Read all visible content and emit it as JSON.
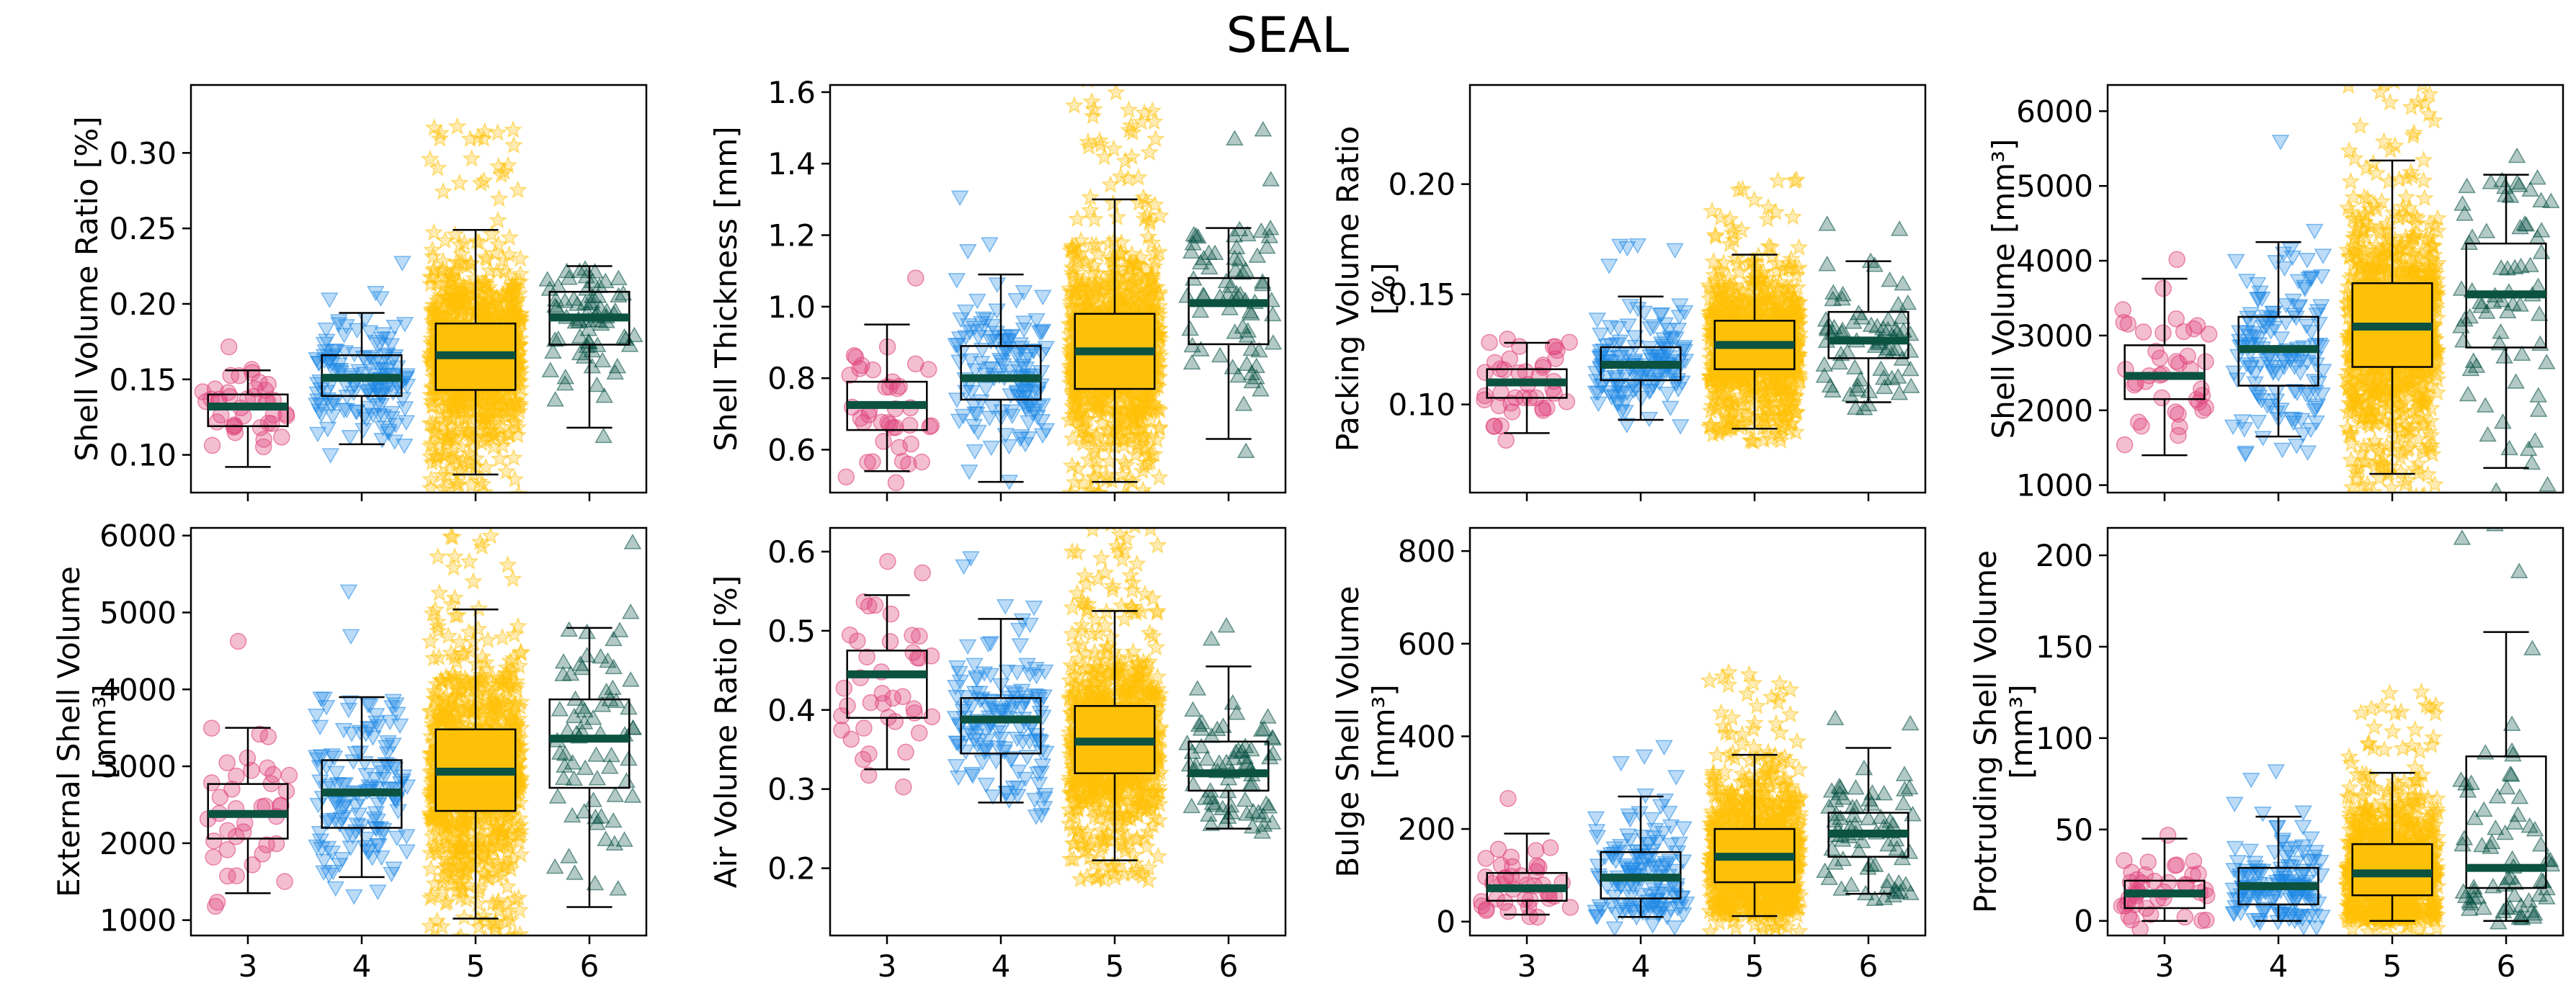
{
  "figure": {
    "title": "SEAL"
  },
  "categories": [
    "3",
    "4",
    "5",
    "6"
  ],
  "group_style": {
    "3": {
      "marker": "circle",
      "color": "#e0457b"
    },
    "4": {
      "marker": "triangle-down",
      "color": "#1e88e5"
    },
    "5": {
      "marker": "star",
      "color": "#ffc107"
    },
    "6": {
      "marker": "triangle-up",
      "color": "#004d40"
    }
  },
  "median_color": "#0b5240",
  "box_fill": {
    "3": "#ffffff",
    "4": "#ffffff",
    "5": "#ffc107",
    "6": "#ffffff"
  },
  "chart_data": [
    {
      "type": "box",
      "ylabel": "Shell Volume Ratio [%]",
      "ylim": [
        0.075,
        0.345
      ],
      "yticks": [
        "0.10",
        "0.15",
        "0.20",
        "0.25",
        "0.30"
      ],
      "categories": [
        "3",
        "4",
        "5",
        "6"
      ],
      "xtick_labels": false,
      "boxes": [
        {
          "category": "3",
          "whislo": 0.092,
          "q1": 0.119,
          "med": 0.132,
          "q3": 0.14,
          "whishi": 0.156,
          "n": 40
        },
        {
          "category": "4",
          "whislo": 0.107,
          "q1": 0.139,
          "med": 0.151,
          "q3": 0.166,
          "whishi": 0.194,
          "n": 140
        },
        {
          "category": "5",
          "whislo": 0.087,
          "q1": 0.143,
          "med": 0.166,
          "q3": 0.187,
          "whishi": 0.249,
          "n": 900
        },
        {
          "category": "6",
          "whislo": 0.118,
          "q1": 0.173,
          "med": 0.191,
          "q3": 0.208,
          "whishi": 0.225,
          "n": 70
        }
      ]
    },
    {
      "type": "box",
      "ylabel": "Shell Thickness [mm]",
      "ylim": [
        0.48,
        1.62
      ],
      "yticks": [
        "0.6",
        "0.8",
        "1.0",
        "1.2",
        "1.4",
        "1.6"
      ],
      "categories": [
        "3",
        "4",
        "5",
        "6"
      ],
      "xtick_labels": false,
      "boxes": [
        {
          "category": "3",
          "whislo": 0.54,
          "q1": 0.655,
          "med": 0.725,
          "q3": 0.79,
          "whishi": 0.95,
          "n": 40
        },
        {
          "category": "4",
          "whislo": 0.51,
          "q1": 0.74,
          "med": 0.8,
          "q3": 0.89,
          "whishi": 1.09,
          "n": 140
        },
        {
          "category": "5",
          "whislo": 0.51,
          "q1": 0.77,
          "med": 0.875,
          "q3": 0.98,
          "whishi": 1.3,
          "n": 900
        },
        {
          "category": "6",
          "whislo": 0.63,
          "q1": 0.895,
          "med": 1.01,
          "q3": 1.08,
          "whishi": 1.22,
          "n": 70
        }
      ]
    },
    {
      "type": "box",
      "ylabel": "Packing Volume Ratio [%]",
      "ylim": [
        0.06,
        0.245
      ],
      "yticks": [
        "0.10",
        "0.15",
        "0.20"
      ],
      "categories": [
        "3",
        "4",
        "5",
        "6"
      ],
      "xtick_labels": false,
      "boxes": [
        {
          "category": "3",
          "whislo": 0.087,
          "q1": 0.103,
          "med": 0.11,
          "q3": 0.116,
          "whishi": 0.128,
          "n": 40
        },
        {
          "category": "4",
          "whislo": 0.093,
          "q1": 0.111,
          "med": 0.118,
          "q3": 0.126,
          "whishi": 0.149,
          "n": 140
        },
        {
          "category": "5",
          "whislo": 0.089,
          "q1": 0.116,
          "med": 0.127,
          "q3": 0.138,
          "whishi": 0.168,
          "n": 900
        },
        {
          "category": "6",
          "whislo": 0.101,
          "q1": 0.121,
          "med": 0.129,
          "q3": 0.142,
          "whishi": 0.165,
          "n": 70
        }
      ]
    },
    {
      "type": "box",
      "ylabel": "Shell Volume [mm³]",
      "ylim": [
        900,
        6350
      ],
      "yticks": [
        "1000",
        "2000",
        "3000",
        "4000",
        "5000",
        "6000"
      ],
      "categories": [
        "3",
        "4",
        "5",
        "6"
      ],
      "xtick_labels": false,
      "boxes": [
        {
          "category": "3",
          "whislo": 1400,
          "q1": 2150,
          "med": 2460,
          "q3": 2870,
          "whishi": 3760,
          "n": 40
        },
        {
          "category": "4",
          "whislo": 1650,
          "q1": 2330,
          "med": 2820,
          "q3": 3250,
          "whishi": 4250,
          "n": 140
        },
        {
          "category": "5",
          "whislo": 1150,
          "q1": 2580,
          "med": 3120,
          "q3": 3700,
          "whishi": 5340,
          "n": 900
        },
        {
          "category": "6",
          "whislo": 1230,
          "q1": 2840,
          "med": 3550,
          "q3": 4230,
          "whishi": 5150,
          "n": 70
        }
      ]
    },
    {
      "type": "box",
      "ylabel": "External Shell Volume [mm³]",
      "ylim": [
        800,
        6100
      ],
      "yticks": [
        "1000",
        "2000",
        "3000",
        "4000",
        "5000",
        "6000"
      ],
      "categories": [
        "3",
        "4",
        "5",
        "6"
      ],
      "xtick_labels": true,
      "boxes": [
        {
          "category": "3",
          "whislo": 1350,
          "q1": 2060,
          "med": 2380,
          "q3": 2770,
          "whishi": 3500,
          "n": 40
        },
        {
          "category": "4",
          "whislo": 1560,
          "q1": 2200,
          "med": 2660,
          "q3": 3080,
          "whishi": 3900,
          "n": 140
        },
        {
          "category": "5",
          "whislo": 1020,
          "q1": 2420,
          "med": 2930,
          "q3": 3480,
          "whishi": 5040,
          "n": 900
        },
        {
          "category": "6",
          "whislo": 1170,
          "q1": 2720,
          "med": 3360,
          "q3": 3870,
          "whishi": 4800,
          "n": 70
        }
      ]
    },
    {
      "type": "box",
      "ylabel": "Air Volume Ratio [%]",
      "ylim": [
        0.115,
        0.63
      ],
      "yticks": [
        "0.2",
        "0.3",
        "0.4",
        "0.5",
        "0.6"
      ],
      "categories": [
        "3",
        "4",
        "5",
        "6"
      ],
      "xtick_labels": true,
      "boxes": [
        {
          "category": "3",
          "whislo": 0.325,
          "q1": 0.39,
          "med": 0.445,
          "q3": 0.475,
          "whishi": 0.545,
          "n": 40
        },
        {
          "category": "4",
          "whislo": 0.283,
          "q1": 0.345,
          "med": 0.388,
          "q3": 0.415,
          "whishi": 0.515,
          "n": 140
        },
        {
          "category": "5",
          "whislo": 0.21,
          "q1": 0.32,
          "med": 0.36,
          "q3": 0.405,
          "whishi": 0.525,
          "n": 900
        },
        {
          "category": "6",
          "whislo": 0.25,
          "q1": 0.298,
          "med": 0.32,
          "q3": 0.36,
          "whishi": 0.455,
          "n": 70
        }
      ]
    },
    {
      "type": "box",
      "ylabel": "Bulge Shell Volume [mm³]",
      "ylim": [
        -30,
        850
      ],
      "yticks": [
        "0",
        "200",
        "400",
        "600",
        "800"
      ],
      "categories": [
        "3",
        "4",
        "5",
        "6"
      ],
      "xtick_labels": true,
      "boxes": [
        {
          "category": "3",
          "whislo": 15,
          "q1": 45,
          "med": 72,
          "q3": 105,
          "whishi": 190,
          "n": 40
        },
        {
          "category": "4",
          "whislo": 10,
          "q1": 50,
          "med": 95,
          "q3": 150,
          "whishi": 270,
          "n": 140
        },
        {
          "category": "5",
          "whislo": 12,
          "q1": 85,
          "med": 140,
          "q3": 200,
          "whishi": 360,
          "n": 900
        },
        {
          "category": "6",
          "whislo": 60,
          "q1": 140,
          "med": 190,
          "q3": 235,
          "whishi": 375,
          "n": 70
        }
      ]
    },
    {
      "type": "box",
      "ylabel": "Protruding Shell Volume [mm³]",
      "ylim": [
        -8,
        215
      ],
      "yticks": [
        "0",
        "50",
        "100",
        "150",
        "200"
      ],
      "categories": [
        "3",
        "4",
        "5",
        "6"
      ],
      "xtick_labels": true,
      "boxes": [
        {
          "category": "3",
          "whislo": 0,
          "q1": 7,
          "med": 15,
          "q3": 22,
          "whishi": 45,
          "n": 40
        },
        {
          "category": "4",
          "whislo": 0,
          "q1": 9,
          "med": 19,
          "q3": 29,
          "whishi": 57,
          "n": 140
        },
        {
          "category": "5",
          "whislo": 0,
          "q1": 14,
          "med": 26,
          "q3": 42,
          "whishi": 81,
          "n": 900
        },
        {
          "category": "6",
          "whislo": 0,
          "q1": 18,
          "med": 29,
          "q3": 90,
          "whishi": 158,
          "n": 70
        }
      ]
    }
  ]
}
